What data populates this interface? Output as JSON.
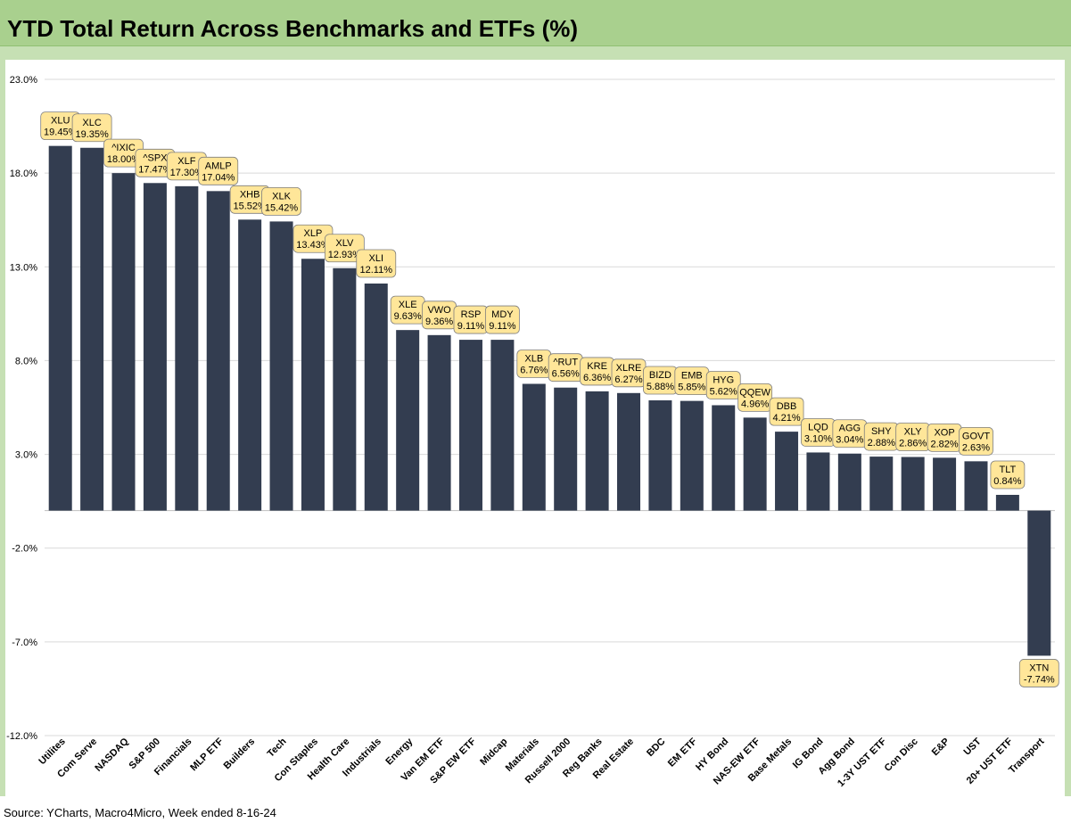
{
  "title": "YTD Total Return Across Benchmarks and ETFs (%)",
  "source": "Source: YCharts, Macro4Micro, Week ended 8-16-24",
  "colors": {
    "bar": "#333d50",
    "label_bg": "#ffe699",
    "gridline": "#d9d9d9",
    "title_bar": "#a9d08e",
    "frame": "#c6e0b4"
  },
  "chart_data": {
    "type": "bar",
    "title": "YTD Total Return Across Benchmarks and ETFs (%)",
    "ylim": [
      -12,
      23
    ],
    "yticks": [
      23,
      18,
      13,
      8,
      3,
      -2,
      -7,
      -12
    ],
    "ytick_labels": [
      "23.0%",
      "18.0%",
      "13.0%",
      "8.0%",
      "3.0%",
      "-2.0%",
      "-7.0%",
      "-12.0%"
    ],
    "grid": true,
    "categories": [
      "Utilites",
      "Com Serve",
      "NASDAQ",
      "S&P 500",
      "Financials",
      "MLP ETF",
      "Builders",
      "Tech",
      "Con Staples",
      "Health Care",
      "Industrials",
      "Energy",
      "Van EM ETF",
      "S&P EW ETF",
      "Midcap",
      "Materials",
      "Russell 2000",
      "Reg Banks",
      "Real Estate",
      "BDC",
      "EM ETF",
      "HY Bond",
      "NAS-EW ETF",
      "Base Metals",
      "IG Bond",
      "Agg Bond",
      "1-3Y UST ETF",
      "Con Disc",
      "E&P",
      "UST",
      "20+ UST ETF",
      "Transport"
    ],
    "tickers": [
      "XLU",
      "XLC",
      "^IXIC",
      "^SPX",
      "XLF",
      "AMLP",
      "XHB",
      "XLK",
      "XLP",
      "XLV",
      "XLI",
      "XLE",
      "VWO",
      "RSP",
      "MDY",
      "XLB",
      "^RUT",
      "KRE",
      "XLRE",
      "BIZD",
      "EMB",
      "HYG",
      "QQEW",
      "DBB",
      "LQD",
      "AGG",
      "SHY",
      "XLY",
      "XOP",
      "GOVT",
      "TLT",
      "XTN"
    ],
    "values": [
      19.45,
      19.35,
      18.0,
      17.47,
      17.3,
      17.04,
      15.52,
      15.42,
      13.43,
      12.93,
      12.11,
      9.63,
      9.36,
      9.11,
      9.11,
      6.76,
      6.56,
      6.36,
      6.27,
      5.88,
      5.85,
      5.62,
      4.96,
      4.21,
      3.1,
      3.04,
      2.88,
      2.86,
      2.82,
      2.63,
      0.84,
      -7.74
    ],
    "value_labels": [
      "19.45%",
      "19.35%",
      "18.00%",
      "17.47%",
      "17.30%",
      "17.04%",
      "15.52%",
      "15.42%",
      "13.43%",
      "12.93%",
      "12.11%",
      "9.63%",
      "9.36%",
      "9.11%",
      "9.11%",
      "6.76%",
      "6.56%",
      "6.36%",
      "6.27%",
      "5.88%",
      "5.85%",
      "5.62%",
      "4.96%",
      "4.21%",
      "3.10%",
      "3.04%",
      "2.88%",
      "2.86%",
      "2.82%",
      "2.63%",
      "0.84%",
      "-7.74%"
    ]
  }
}
